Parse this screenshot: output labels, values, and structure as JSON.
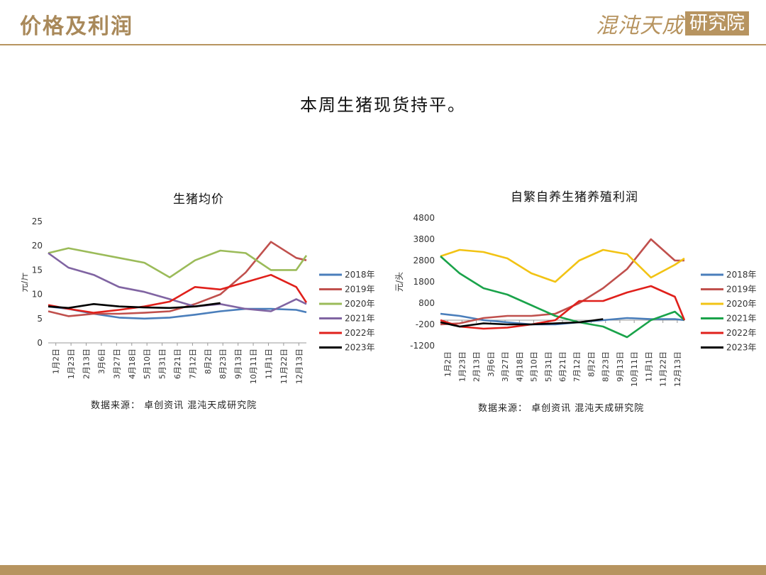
{
  "header": {
    "title": "价格及利润",
    "logo_text": "混沌天成",
    "logo_box_text": "研究院"
  },
  "headline": "本周生猪现货持平。",
  "colors": {
    "2018年": "#4a7ebb",
    "2019年": "#c0504d",
    "2020年": "#9bbb59",
    "2021年": "#8064a2",
    "2022年": "#e0201b",
    "2023年": "#000000",
    "2020年_profit": "#f2c314",
    "2021年_profit": "#1aa34a"
  },
  "chart_data": [
    {
      "type": "line",
      "title": "生猪均价",
      "ylabel": "元/斤",
      "ylim": [
        0,
        25
      ],
      "yticks": [
        "0",
        "5",
        "10",
        "15",
        "20",
        "25"
      ],
      "xticks": [
        "1月2日",
        "1月23日",
        "2月13日",
        "3月6日",
        "3月27日",
        "4月18日",
        "5月10日",
        "5月31日",
        "6月21日",
        "7月12日",
        "8月2日",
        "8月23日",
        "9月13日",
        "10月11日",
        "11月1日",
        "11月22日",
        "12月13日"
      ],
      "x": [
        1,
        5,
        10,
        15,
        20,
        25,
        30,
        35,
        40,
        45,
        50,
        52
      ],
      "series": [
        {
          "name": "2018年",
          "values": [
            7.5,
            7.0,
            6.0,
            5.2,
            5.0,
            5.2,
            5.8,
            6.5,
            7.0,
            7.0,
            6.8,
            6.3
          ]
        },
        {
          "name": "2019年",
          "values": [
            6.5,
            5.5,
            6.0,
            6.0,
            6.2,
            6.5,
            8.0,
            10.0,
            14.5,
            20.8,
            17.5,
            17.0
          ]
        },
        {
          "name": "2020年",
          "values": [
            18.5,
            19.5,
            18.5,
            17.5,
            16.5,
            13.5,
            17.0,
            19.0,
            18.5,
            15.0,
            15.0,
            18.0
          ]
        },
        {
          "name": "2021年",
          "values": [
            18.5,
            15.5,
            14.0,
            11.5,
            10.5,
            9.0,
            7.5,
            8.0,
            7.0,
            6.5,
            9.0,
            8.0
          ]
        },
        {
          "name": "2022年",
          "values": [
            7.8,
            7.0,
            6.2,
            6.8,
            7.5,
            8.5,
            11.5,
            11.0,
            12.5,
            14.0,
            11.5,
            8.3
          ]
        },
        {
          "name": "2023年",
          "values": [
            7.5,
            7.2,
            8.0,
            7.5,
            7.3,
            7.2,
            7.5,
            8.2,
            null,
            null,
            null,
            null
          ]
        }
      ],
      "legend_position": "right"
    },
    {
      "type": "line",
      "title": "自繁自养生猪养殖利润",
      "ylabel": "元/头",
      "ylim": [
        -1200,
        4800
      ],
      "yticks": [
        "-1200",
        "-200",
        "800",
        "1800",
        "2800",
        "3800",
        "4800"
      ],
      "xticks": [
        "1月2日",
        "1月23日",
        "2月13日",
        "3月6日",
        "3月27日",
        "4月18日",
        "5月10日",
        "5月31日",
        "6月21日",
        "7月12日",
        "8月2日",
        "8月23日",
        "9月13日",
        "10月11日",
        "11月1日",
        "11月22日",
        "12月13日"
      ],
      "x": [
        1,
        5,
        10,
        15,
        20,
        25,
        30,
        35,
        40,
        45,
        50,
        52
      ],
      "series": [
        {
          "name": "2018年",
          "values": [
            300,
            200,
            0,
            -100,
            -200,
            -200,
            -100,
            0,
            100,
            50,
            50,
            0
          ]
        },
        {
          "name": "2019年",
          "values": [
            -200,
            -150,
            100,
            200,
            200,
            300,
            800,
            1500,
            2400,
            3800,
            2800,
            2800
          ]
        },
        {
          "name": "2020年",
          "values": [
            3000,
            3300,
            3200,
            2900,
            2200,
            1800,
            2800,
            3300,
            3100,
            2000,
            2600,
            2900
          ]
        },
        {
          "name": "2021年",
          "values": [
            3000,
            2200,
            1500,
            1200,
            700,
            200,
            -100,
            -300,
            -800,
            0,
            400,
            0
          ]
        },
        {
          "name": "2022年",
          "values": [
            0,
            -300,
            -400,
            -350,
            -200,
            0,
            900,
            900,
            1300,
            1600,
            1100,
            0
          ]
        },
        {
          "name": "2023年",
          "values": [
            -100,
            -300,
            -150,
            -200,
            -200,
            -150,
            -100,
            50,
            null,
            null,
            null,
            null
          ]
        }
      ],
      "legend_position": "right"
    }
  ],
  "sources": [
    "数据来源： 卓创资讯 混沌天成研究院",
    "数据来源： 卓创资讯 混沌天成研究院"
  ]
}
